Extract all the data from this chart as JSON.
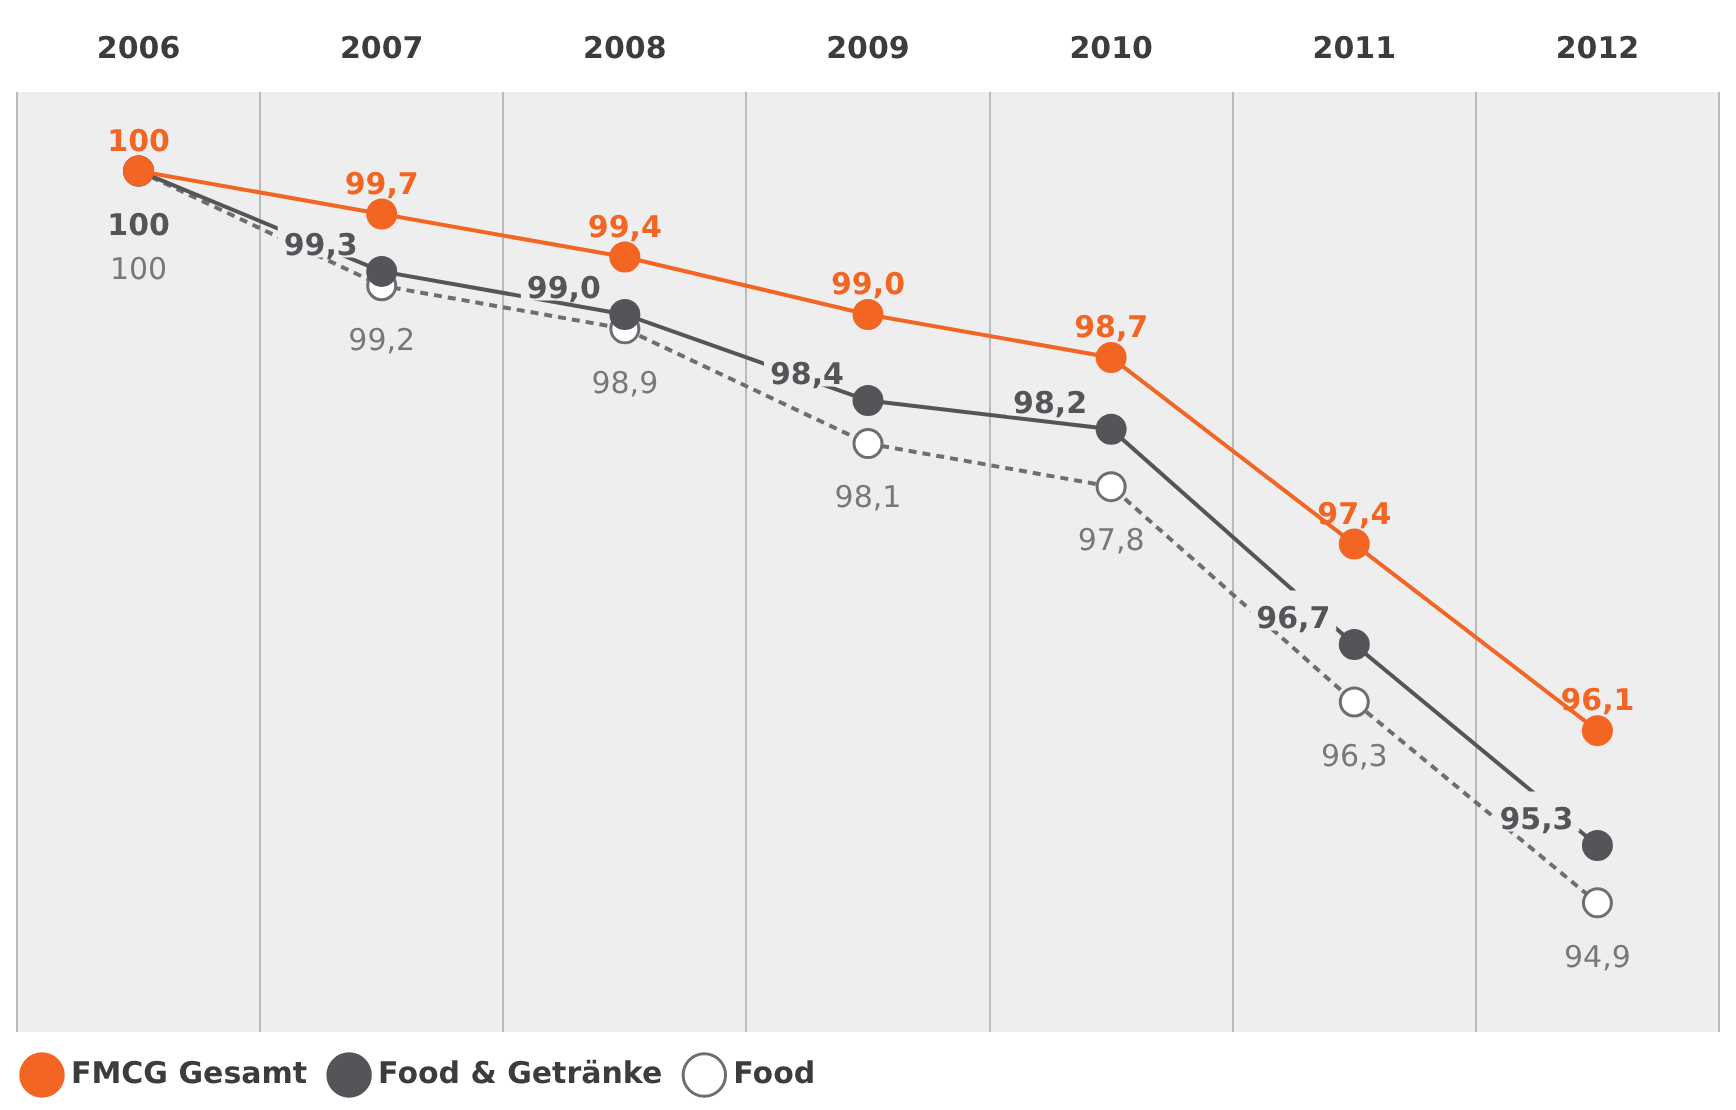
{
  "chart_data": {
    "type": "line",
    "categories": [
      "2006",
      "2007",
      "2008",
      "2009",
      "2010",
      "2011",
      "2012"
    ],
    "ylim": [
      94.0,
      100.55
    ],
    "grid": "x",
    "legend": "bottom left",
    "marker": "circle",
    "tick_labels": "x",
    "series": [
      {
        "name": "FMCG Gesamt",
        "color": "#f26522",
        "values": [
          100,
          99.7,
          99.4,
          99.0,
          98.7,
          97.4,
          96.1
        ],
        "value_labels": [
          "100",
          "99,7",
          "99,4",
          "99,0",
          "98,7",
          "97,4",
          "96,1"
        ],
        "line_style": "solid"
      },
      {
        "name": "Food & Getränke",
        "color": "#555559",
        "values": [
          100,
          99.3,
          99.0,
          98.4,
          98.2,
          96.7,
          95.3
        ],
        "value_labels": [
          "100",
          "99,3",
          "99,0",
          "98,4",
          "98,2",
          "96,7",
          "95,3"
        ],
        "line_style": "solid"
      },
      {
        "name": "Food",
        "color": "#6d6e71",
        "values": [
          100,
          99.2,
          98.9,
          98.1,
          97.8,
          96.3,
          94.9
        ],
        "value_labels": [
          "100",
          "99,2",
          "98,9",
          "98,1",
          "97,8",
          "96,3",
          "94,9"
        ],
        "line_style": "dashed"
      }
    ]
  }
}
